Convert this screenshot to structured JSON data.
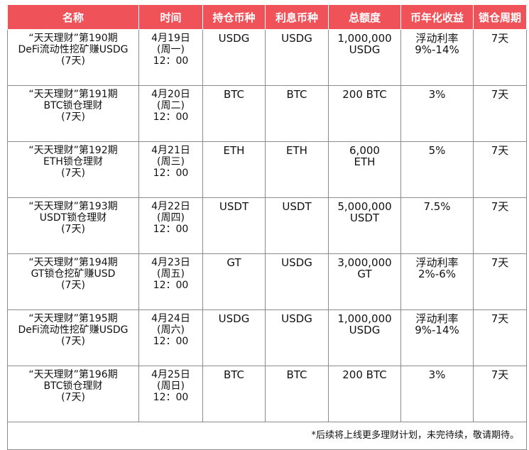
{
  "headers": [
    "名称",
    "时间",
    "持仓币种",
    "利息币种",
    "总额度",
    "币年化收益",
    "锁仓周期"
  ],
  "rows": [
    {
      "name": [
        "“天天理财”第190期",
        "DeFi流动性挖矿赚USDG",
        "(7天)"
      ],
      "time": [
        "4月19日",
        "(周一)",
        "12：00"
      ],
      "hold": "USDG",
      "interest": "USDG",
      "total": [
        "1,000,000",
        "USDG"
      ],
      "yield": [
        "浮动利率",
        "9%-14%"
      ],
      "period": "7天"
    },
    {
      "name": [
        "“天天理财”第191期",
        "BTC锁仓理财",
        "(7天)"
      ],
      "time": [
        "4月20日",
        "(周二)",
        "12：00"
      ],
      "hold": "BTC",
      "interest": "BTC",
      "total": [
        "200 BTC"
      ],
      "yield": [
        "3%"
      ],
      "period": "7天"
    },
    {
      "name": [
        "“天天理财”第192期",
        "ETH锁仓理财",
        "(7天)"
      ],
      "time": [
        "4月21日",
        "(周三)",
        "12：00"
      ],
      "hold": "ETH",
      "interest": "ETH",
      "total": [
        "6,000",
        "ETH"
      ],
      "yield": [
        "5%"
      ],
      "period": "7天"
    },
    {
      "name": [
        "“天天理财”第193期",
        "USDT锁仓理财",
        "(7天)"
      ],
      "time": [
        "4月22日",
        "(周四)",
        "12：00"
      ],
      "hold": "USDT",
      "interest": "USDT",
      "total": [
        "5,000,000",
        "USDT"
      ],
      "yield": [
        "7.5%"
      ],
      "period": "7天"
    },
    {
      "name": [
        "“天天理财”第194期",
        "GT锁仓挖矿赚USD",
        "(7天)"
      ],
      "time": [
        "4月23日",
        "(周五)",
        "12：00"
      ],
      "hold": "GT",
      "interest": "USDG",
      "total": [
        "3,000,000",
        "GT"
      ],
      "yield": [
        "浮动利率",
        "2%-6%"
      ],
      "period": "7天"
    },
    {
      "name": [
        "“天天理财”第195期",
        "DeFi流动性挖矿赚USDG",
        "(7天)"
      ],
      "time": [
        "4月24日",
        "(周六)",
        "12：00"
      ],
      "hold": "USDG",
      "interest": "USDG",
      "total": [
        "1,000,000",
        "USDG"
      ],
      "yield": [
        "浮动利率",
        "9%-14%"
      ],
      "period": "7天"
    },
    {
      "name": [
        "“天天理财”第196期",
        "BTC锁仓理财",
        "(7天)"
      ],
      "time": [
        "4月25日",
        "(周日)",
        "12：00"
      ],
      "hold": "BTC",
      "interest": "BTC",
      "total": [
        "200 BTC"
      ],
      "yield": [
        "3%"
      ],
      "period": "7天"
    }
  ],
  "footnote": "*后续将上线更多理财计划，未完待续，敬请期待。",
  "colors": {
    "header_bg": "#f0525a",
    "header_text": "#ffffff",
    "border": "#8c8c8c"
  }
}
